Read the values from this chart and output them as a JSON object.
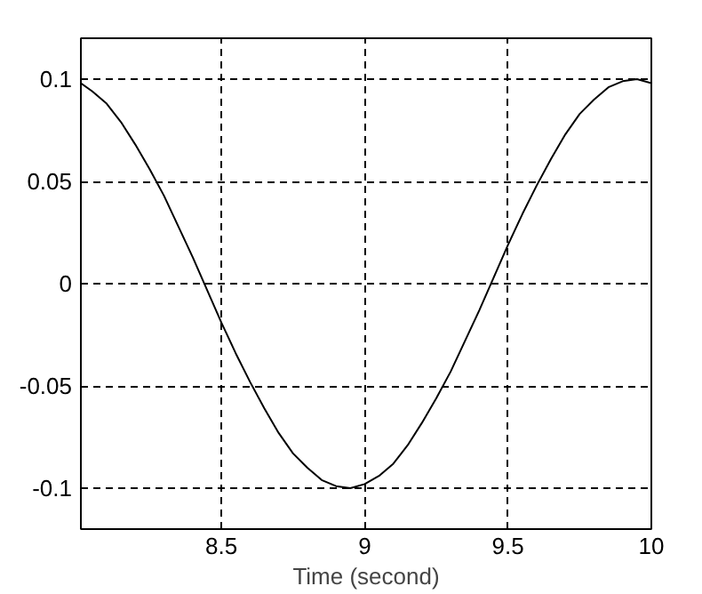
{
  "chart_data": {
    "type": "line",
    "xlabel": "Time (second)",
    "x": [
      8.01,
      8.05,
      8.1,
      8.15,
      8.2,
      8.25,
      8.3,
      8.35,
      8.4,
      8.45,
      8.5,
      8.55,
      8.6,
      8.65,
      8.7,
      8.75,
      8.8,
      8.85,
      8.9,
      8.95,
      9.0,
      9.05,
      9.1,
      9.15,
      9.2,
      9.25,
      9.3,
      9.35,
      9.4,
      9.45,
      9.5,
      9.55,
      9.6,
      9.65,
      9.7,
      9.75,
      9.8,
      9.85,
      9.9,
      9.95,
      10
    ],
    "series": [
      {
        "color": "#000000",
        "values": [
          0.098,
          0.094,
          0.088,
          0.079,
          0.068,
          0.056,
          0.043,
          0.028,
          0.013,
          -0.003,
          -0.019,
          -0.034,
          -0.048,
          -0.061,
          -0.073,
          -0.083,
          -0.09,
          -0.096,
          -0.099,
          -0.1,
          -0.098,
          -0.094,
          -0.088,
          -0.079,
          -0.068,
          -0.056,
          -0.043,
          -0.028,
          -0.013,
          0.003,
          0.019,
          0.034,
          0.048,
          0.061,
          0.073,
          0.083,
          0.09,
          0.096,
          0.099,
          0.1,
          0.098
        ]
      }
    ],
    "xlim": [
      8.01,
      10
    ],
    "ylim": [
      -0.12,
      0.12
    ],
    "xticks": [
      8.5,
      9,
      9.5,
      10
    ],
    "yticks": [
      -0.1,
      -0.05,
      0,
      0.05,
      0.1
    ],
    "grid": true,
    "line_style": "solid"
  }
}
